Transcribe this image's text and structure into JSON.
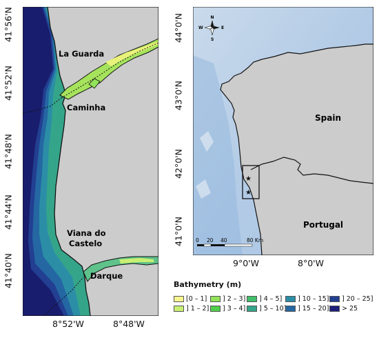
{
  "left_map": {
    "places": {
      "la_guarda": "La Guarda",
      "caminha": "Caminha",
      "viana_line1": "Viana do",
      "viana_line2": "Castelo",
      "darque": "Darque"
    },
    "lat_ticks": [
      "41°56'N",
      "41°52'N",
      "41°48'N",
      "41°44'N",
      "41°40'N"
    ],
    "lon_ticks": [
      "8°52'W",
      "8°48'W"
    ]
  },
  "right_map": {
    "countries": {
      "spain": "Spain",
      "portugal": "Portugal"
    },
    "lat_ticks": [
      "44°0'N",
      "43°0'N",
      "42°0'N",
      "41°0'N"
    ],
    "lon_ticks": [
      "9°0'W",
      "8°0'W"
    ],
    "compass": {
      "n": "N",
      "s": "S",
      "e": "E",
      "w": "W"
    },
    "scalebar": {
      "labels": [
        "0",
        "20",
        "40",
        "80 Km"
      ]
    }
  },
  "legend": {
    "title": "Bathymetry (m)",
    "items": [
      {
        "label": "[0 – 1]",
        "color": "#f6f58f"
      },
      {
        "label": "] 1 – 2]",
        "color": "#c9ef72"
      },
      {
        "label": "] 2 – 3]",
        "color": "#92e35a"
      },
      {
        "label": "] 3 – 4]",
        "color": "#4fce4a"
      },
      {
        "label": "] 4 – 5]",
        "color": "#41be6c"
      },
      {
        "label": "] 5 – 10]",
        "color": "#35a58a"
      },
      {
        "label": "] 10 – 15]",
        "color": "#2b8ea6"
      },
      {
        "label": "] 15 – 20]",
        "color": "#2467a3"
      },
      {
        "label": "] 20 – 25]",
        "color": "#223f91"
      },
      {
        "label": "> 25",
        "color": "#1c1e7a"
      }
    ]
  },
  "colors": {
    "land": "#cccccc",
    "deep_ocean": "#191d6e",
    "ocean_light": "#b9cfe6"
  }
}
